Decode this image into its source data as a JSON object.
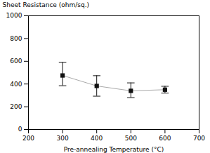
{
  "chart_data": {
    "type": "line",
    "x": [
      300,
      400,
      500,
      600
    ],
    "values": [
      475,
      383,
      340,
      350
    ],
    "yerr_lower": [
      90,
      90,
      60,
      30
    ],
    "yerr_upper": [
      115,
      90,
      70,
      30
    ],
    "xlabel": "Pre-annealing Temperature (°C)",
    "ylabel": "Sheet Resistance (ohm/sq.)",
    "xlim": [
      200,
      700
    ],
    "ylim": [
      0,
      1000
    ],
    "xticks": [
      200,
      300,
      400,
      500,
      600,
      700
    ],
    "yticks": [
      0,
      200,
      400,
      600,
      800,
      1000
    ],
    "color": "#111111",
    "marker": "square",
    "grid": false
  }
}
